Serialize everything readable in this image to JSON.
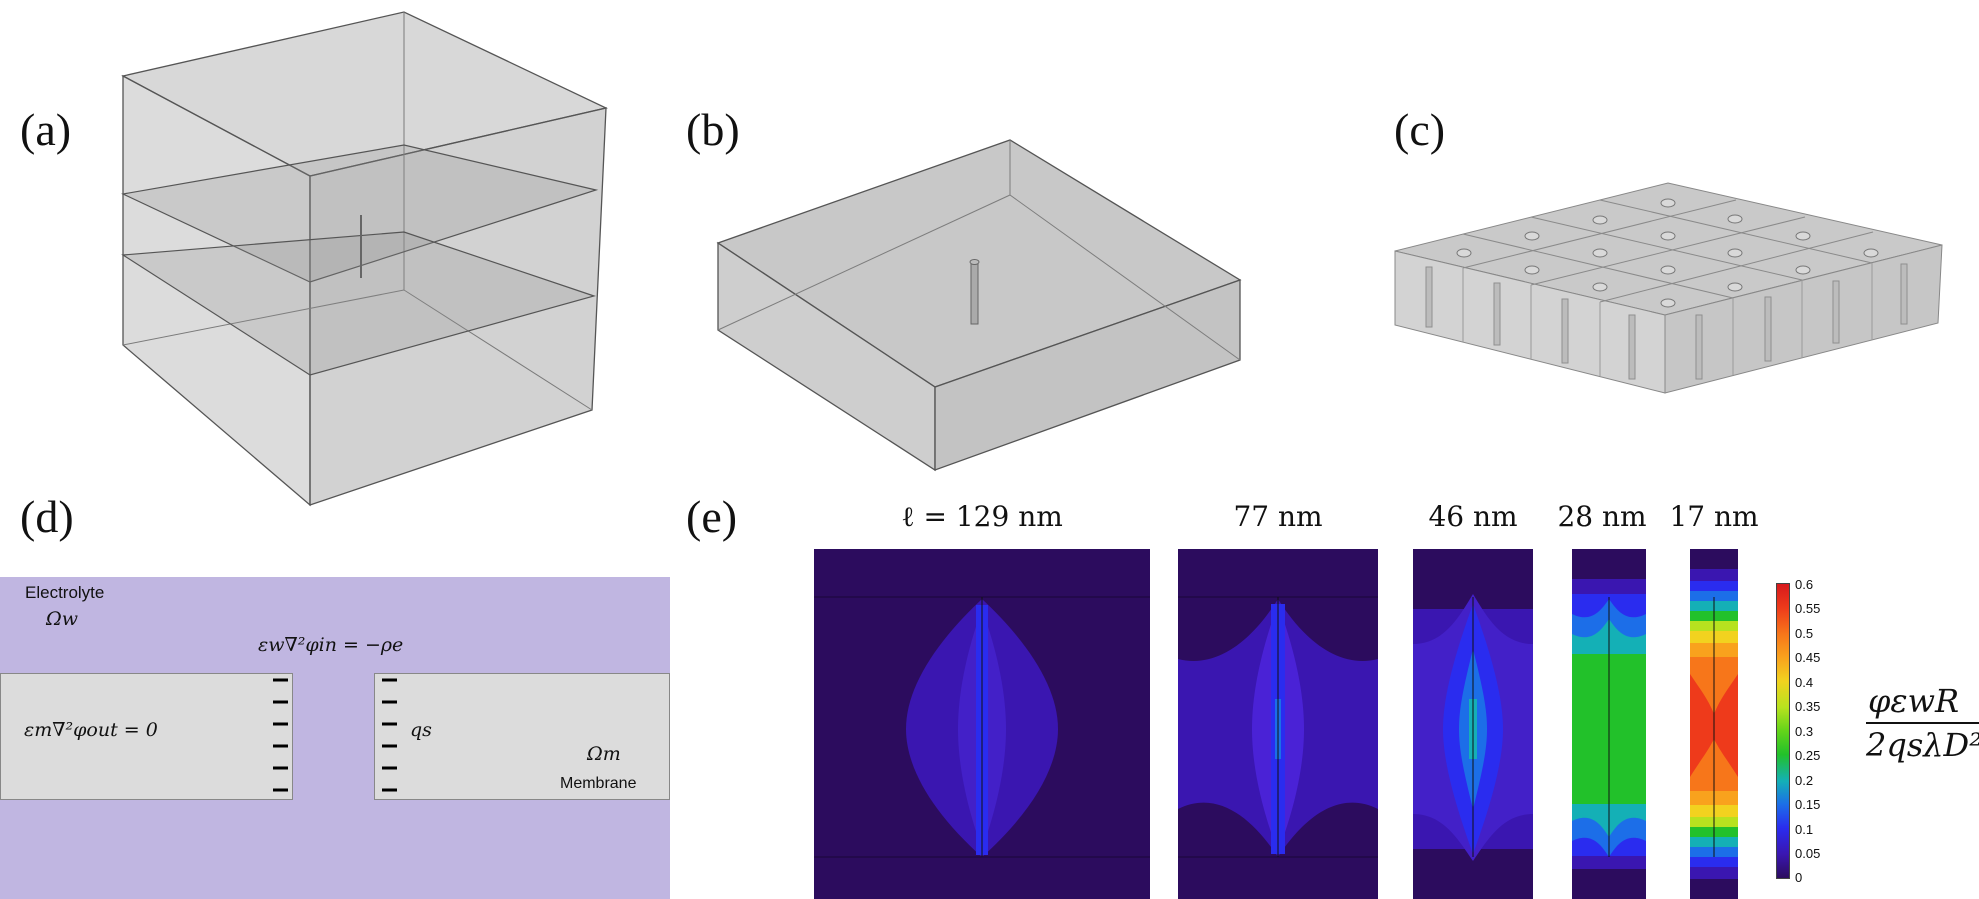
{
  "panels": {
    "a": "(a)",
    "b": "(b)",
    "c": "(c)",
    "d": "(d)",
    "e": "(e)"
  },
  "schematic": {
    "electrolyte_label": "Electrolyte",
    "omega_w": "Ωw",
    "eq_in": "εw∇²φin = −ρe",
    "eq_out": "εm∇²φout = 0",
    "qs": "qs",
    "omega_m": "Ωm",
    "membrane_label": "Membrane"
  },
  "ell_labels": [
    "ℓ = 129 nm",
    "77 nm",
    "46 nm",
    "28 nm",
    "17 nm"
  ],
  "colorbar": {
    "ticks": [
      "0.6",
      "0.55",
      "0.5",
      "0.45",
      "0.4",
      "0.35",
      "0.3",
      "0.25",
      "0.2",
      "0.15",
      "0.1",
      "0.05",
      "0"
    ],
    "colors": [
      "#d7191c",
      "#ee3a1b",
      "#f7761a",
      "#f9a21d",
      "#f2d21f",
      "#b7e21f",
      "#63d41a",
      "#22c12a",
      "#14b0b6",
      "#1c6ee8",
      "#2a2cef",
      "#3a16b0",
      "#2c0c5e"
    ]
  },
  "y_label": {
    "numerator": "φεwR",
    "denominator": "2qsλD²"
  }
}
